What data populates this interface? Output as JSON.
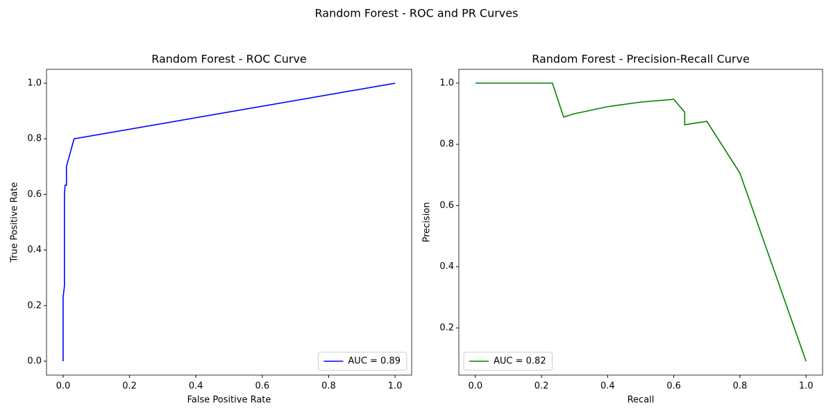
{
  "title": "Random Forest - ROC and PR Curves",
  "chart_data": [
    {
      "type": "line",
      "title": "Random Forest - ROC Curve",
      "xlabel": "False Positive Rate",
      "ylabel": "True Positive Rate",
      "x": [
        0,
        0,
        0.004,
        0.004,
        0.006,
        0.01,
        0.01,
        0.033,
        1
      ],
      "series": [
        {
          "name": "AUC = 0.89",
          "color": "#0000ff",
          "values": [
            0,
            0.23,
            0.27,
            0.6,
            0.633,
            0.633,
            0.7,
            0.8,
            1
          ]
        }
      ],
      "xlim": [
        -0.05,
        1.05
      ],
      "ylim": [
        -0.05,
        1.05
      ],
      "xticks": [
        {
          "value": 0,
          "label": "0.0"
        },
        0.2,
        0.4,
        0.6,
        0.8,
        {
          "value": 1,
          "label": "1.0"
        }
      ],
      "yticks": [
        {
          "value": 0,
          "label": "0.0"
        },
        0.2,
        0.4,
        0.6,
        0.8,
        {
          "value": 1,
          "label": "1.0"
        }
      ],
      "legend": "lower right"
    },
    {
      "type": "line",
      "title": "Random Forest - Precision-Recall Curve",
      "xlabel": "Recall",
      "ylabel": "Precision",
      "x": [
        0,
        0.233,
        0.267,
        0.3,
        0.4,
        0.5,
        0.6,
        0.633,
        0.633,
        0.7,
        0.8,
        1
      ],
      "series": [
        {
          "name": "AUC = 0.82",
          "color": "#008000",
          "values": [
            1,
            1,
            0.889,
            0.9,
            0.923,
            0.938,
            0.947,
            0.905,
            0.864,
            0.875,
            0.706,
            0.091
          ]
        }
      ],
      "xlim": [
        -0.05,
        1.05
      ],
      "ylim": [
        0.046,
        1.045
      ],
      "xticks": [
        {
          "value": 0,
          "label": "0.0"
        },
        0.2,
        0.4,
        0.6,
        0.8,
        {
          "value": 1,
          "label": "1.0"
        }
      ],
      "yticks": [
        0.2,
        0.4,
        0.6,
        0.8,
        {
          "value": 1,
          "label": "1.0"
        }
      ],
      "legend": "lower left"
    }
  ]
}
